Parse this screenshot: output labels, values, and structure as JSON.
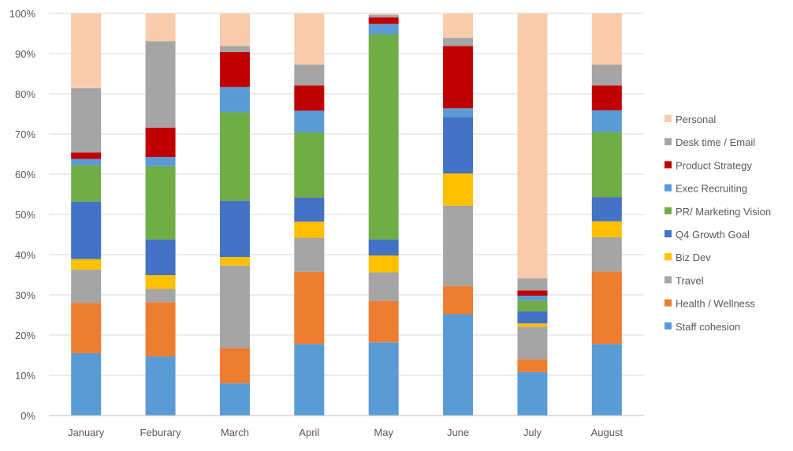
{
  "chart_data": {
    "type": "bar",
    "stacked": true,
    "percent_stacked": true,
    "title": "",
    "xlabel": "",
    "ylabel": "",
    "ylim": [
      0,
      100
    ],
    "y_ticks": [
      "0%",
      "10%",
      "20%",
      "30%",
      "40%",
      "50%",
      "60%",
      "70%",
      "80%",
      "90%",
      "100%"
    ],
    "grid": "horizontal",
    "legend_position": "right",
    "categories": [
      "January",
      "Feburary",
      "March",
      "April",
      "May",
      "June",
      "July",
      "August"
    ],
    "series": [
      {
        "name": "Staff cohesion",
        "color": "#5B9BD5",
        "values": [
          15.5,
          14.7,
          8.0,
          17.8,
          18.2,
          25.2,
          10.8,
          17.8
        ]
      },
      {
        "name": "Health / Wellness",
        "color": "#ED7D31",
        "values": [
          12.5,
          13.5,
          8.8,
          17.9,
          10.3,
          7.0,
          3.2,
          18.0
        ]
      },
      {
        "name": "Travel",
        "color": "#A5A5A5",
        "values": [
          8.3,
          3.3,
          20.5,
          8.5,
          7.1,
          20.0,
          8.1,
          8.5
        ]
      },
      {
        "name": "Biz Dev",
        "color": "#FFC000",
        "values": [
          2.6,
          3.4,
          2.1,
          4.0,
          4.2,
          8.0,
          0.8,
          4.0
        ]
      },
      {
        "name": "Q4 Growth Goal",
        "color": "#4472C4",
        "values": [
          14.3,
          8.9,
          14.0,
          6.0,
          4.0,
          14.0,
          3.0,
          6.0
        ]
      },
      {
        "name": "PR/ Marketing Vision",
        "color": "#70AD47",
        "values": [
          9.0,
          18.2,
          22.0,
          16.2,
          51.0,
          0.0,
          2.7,
          16.2
        ]
      },
      {
        "name": "Exec Recruiting",
        "color": "#5B9BD5",
        "values": [
          1.6,
          2.3,
          6.3,
          5.4,
          2.6,
          2.2,
          1.2,
          5.4
        ]
      },
      {
        "name": "Product Strategy",
        "color": "#C00000",
        "values": [
          1.6,
          7.3,
          8.7,
          6.3,
          1.6,
          15.5,
          1.3,
          6.2
        ]
      },
      {
        "name": "Desk time / Email",
        "color": "#A5A5A5",
        "values": [
          16.0,
          21.5,
          1.5,
          5.2,
          0.6,
          2.0,
          3.0,
          5.2
        ]
      },
      {
        "name": "Personal",
        "color": "#F8CBAD",
        "values": [
          18.6,
          6.9,
          8.1,
          12.7,
          0.4,
          6.1,
          65.9,
          12.7
        ]
      }
    ]
  }
}
